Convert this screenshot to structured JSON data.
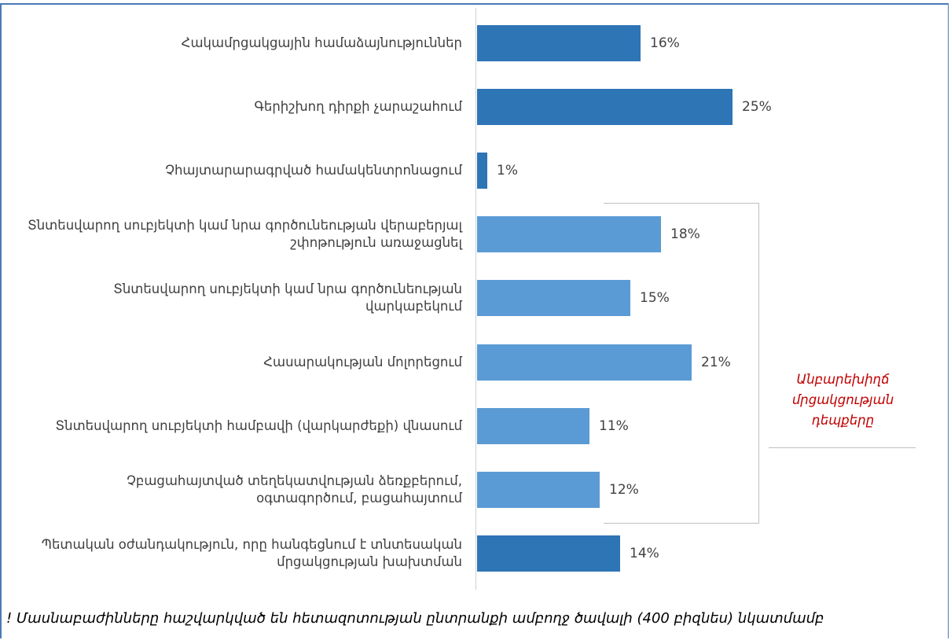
{
  "chart_data": {
    "type": "bar",
    "orientation": "horizontal",
    "categories": [
      "Հակամրցակցային համաձայնություններ",
      "Գերիշխող դիրքի չարաշահում",
      "Չհայտարարագրված համակենտրոնացում",
      "Տնտեսվարող սուբյեկտի կամ նրա գործունեության վերաբերյալ շփոթություն առաջացնել",
      "Տնտեսվարող սուբյեկտի կամ նրա գործունեության վարկաբեկում",
      "Հասարակության մոլորեցում",
      "Տնտեսվարող սուբյեկտի համբավի (վարկարժեքի) վնասում",
      "Չբացահայտված տեղեկատվության ձեռքբերում, օգտագործում, բացահայտում",
      "Պետական օժանդակություն, որը հանգեցնում է տնտեսական մրցակցության խախտման"
    ],
    "values": [
      16,
      25,
      1,
      18,
      15,
      21,
      11,
      12,
      14
    ],
    "value_labels": [
      "16%",
      "25%",
      "1%",
      "18%",
      "15%",
      "21%",
      "11%",
      "12%",
      "14%"
    ],
    "colors": [
      "#2e75b6",
      "#2e75b6",
      "#2e75b6",
      "#5b9bd5",
      "#5b9bd5",
      "#5b9bd5",
      "#5b9bd5",
      "#5b9bd5",
      "#2e75b6"
    ],
    "annotation": "Անբարեխիղճ մրցակցության դեպքերը",
    "note": "! Մասնաբաժինները հաշվարկված են հետազոտության ընտրանքի ամբողջ ծավալի (400 բիզնես) նկատմամբ"
  }
}
